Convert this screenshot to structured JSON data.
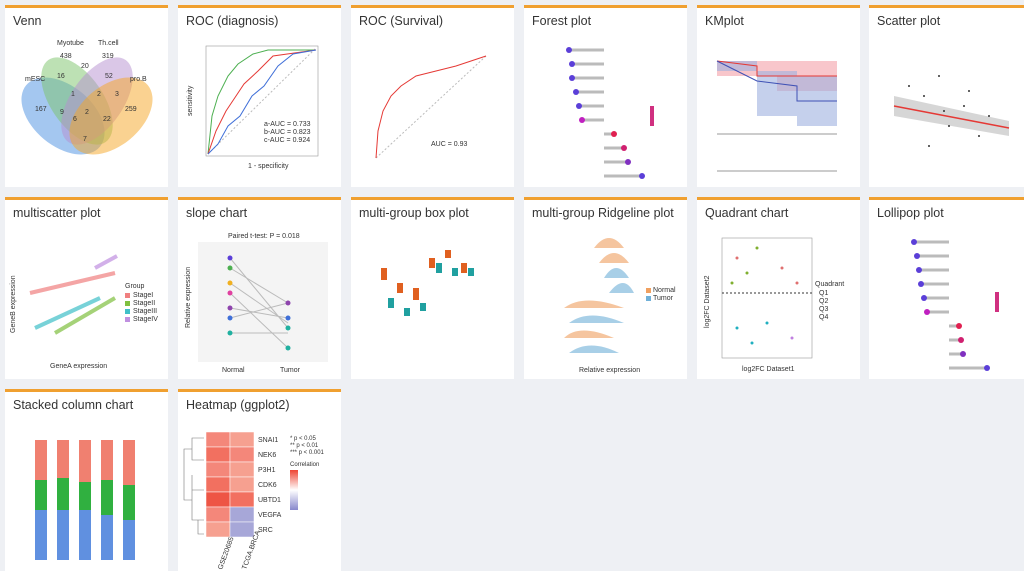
{
  "cards": [
    {
      "title": "Venn",
      "sets": [
        "mESC",
        "Myotube",
        "Th.cell",
        "pro.B"
      ],
      "counts": [
        "438",
        "319",
        "167",
        "259",
        "16",
        "20",
        "52",
        "1",
        "2",
        "9",
        "6",
        "22",
        "2",
        "7",
        "3"
      ]
    },
    {
      "title": "ROC (diagnosis)",
      "legend": [
        "a-AUC = 0.733",
        "b-AUC = 0.823",
        "c-AUC = 0.924"
      ],
      "xlabel": "1 - specificity",
      "ylabel": "sensitivity"
    },
    {
      "title": "ROC (Survival)",
      "annotation": "AUC = 0.93"
    },
    {
      "title": "Forest plot"
    },
    {
      "title": "KMplot"
    },
    {
      "title": "Scatter plot"
    },
    {
      "title": "multiscatter plot",
      "legend_title": "Group",
      "groups": [
        "StageI",
        "StageII",
        "StageIII",
        "StageIV"
      ],
      "xlabel": "GeneA expression",
      "ylabel": "GeneB expression"
    },
    {
      "title": "slope chart",
      "subtitle": "Paired t-test: P = 0.018",
      "groups": [
        "Normal",
        "Tumor"
      ],
      "ylabel": "Relative expression"
    },
    {
      "title": "multi-group box plot"
    },
    {
      "title": "multi-group Ridgeline plot",
      "legend": [
        "Normal",
        "Tumor"
      ],
      "xlabel": "Relative expression"
    },
    {
      "title": "Quadrant chart",
      "legend_title": "Quadrant",
      "groups": [
        "Q1",
        "Q2",
        "Q3",
        "Q4"
      ],
      "xlabel": "log2FC Dataset1",
      "ylabel": "log2FC Dataset2"
    },
    {
      "title": "Lollipop plot"
    },
    {
      "title": "Stacked column chart"
    },
    {
      "title": "Heatmap (ggplot2)",
      "genes": [
        "SNAI1",
        "NEK6",
        "P3H1",
        "CDK6",
        "UBTD1",
        "VEGFA",
        "SRC"
      ],
      "columns": [
        "GSE20685",
        "TCGA.BRCA"
      ],
      "legend": [
        "* p < 0.05",
        "** p < 0.01",
        "*** p < 0.001"
      ],
      "legend_title": "Correlation"
    }
  ]
}
